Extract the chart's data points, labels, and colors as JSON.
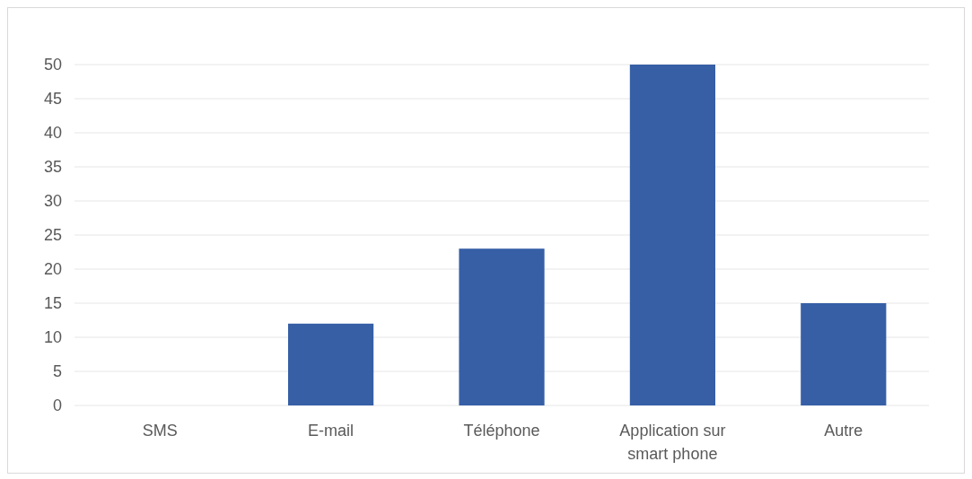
{
  "chart_data": {
    "type": "bar",
    "categories": [
      "SMS",
      "E-mail",
      "Téléphone",
      "Application sur smart phone",
      "Autre"
    ],
    "values": [
      0,
      12,
      23,
      50,
      15
    ],
    "color": "#365fa6",
    "ylim": [
      0,
      50
    ],
    "yticks": [
      0,
      5,
      10,
      15,
      20,
      25,
      30,
      35,
      40,
      45,
      50
    ],
    "grid": "y"
  }
}
